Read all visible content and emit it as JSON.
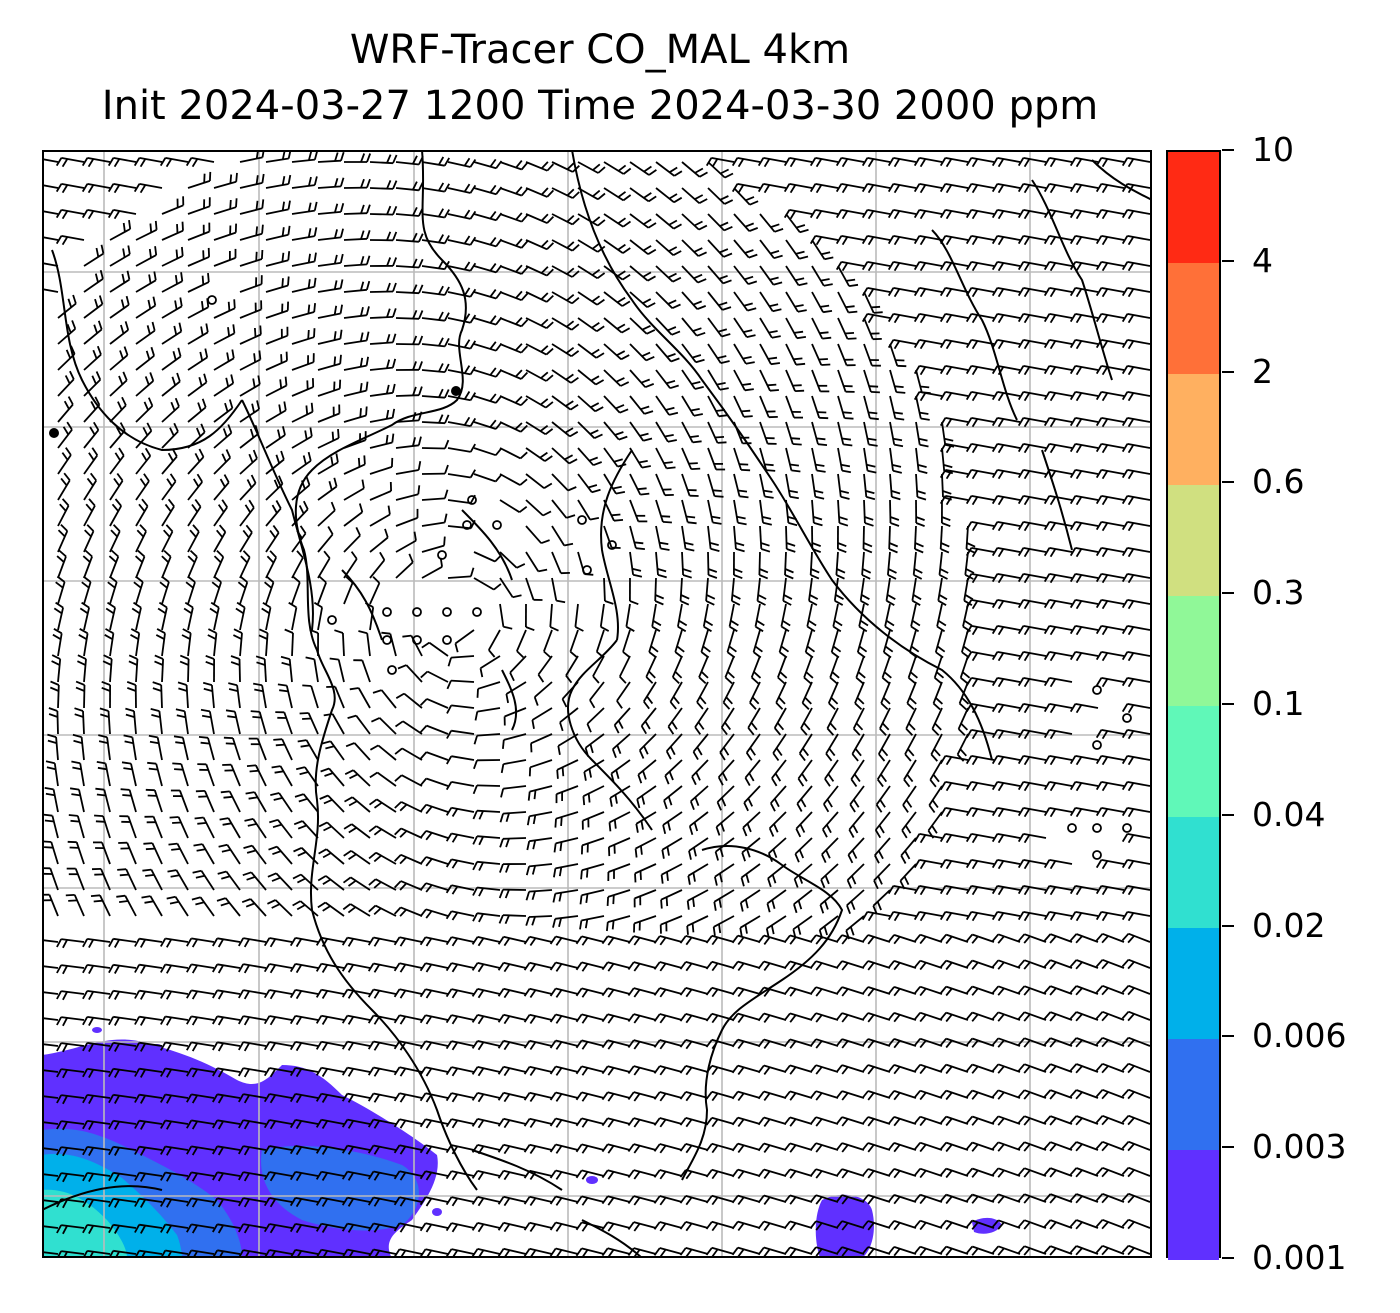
{
  "title": {
    "line1": "WRF-Tracer CO_MAL 4km",
    "line2": "Init 2024-03-27 1200 Time 2024-03-30 2000 ppm"
  },
  "colorbar": {
    "levels": [
      "0.001",
      "0.003",
      "0.006",
      "0.02",
      "0.04",
      "0.1",
      "0.3",
      "0.6",
      "2",
      "4",
      "10"
    ],
    "colors": [
      "#6030ff",
      "#3070f0",
      "#00b0ea",
      "#30e0d0",
      "#60f8b8",
      "#90f898",
      "#d0e080",
      "#ffb060",
      "#ff7038",
      "#ff2a14"
    ]
  },
  "map": {
    "gridline_color": "#bbbbbb",
    "coastline_color": "#000000",
    "barb_color": "#000000"
  }
}
